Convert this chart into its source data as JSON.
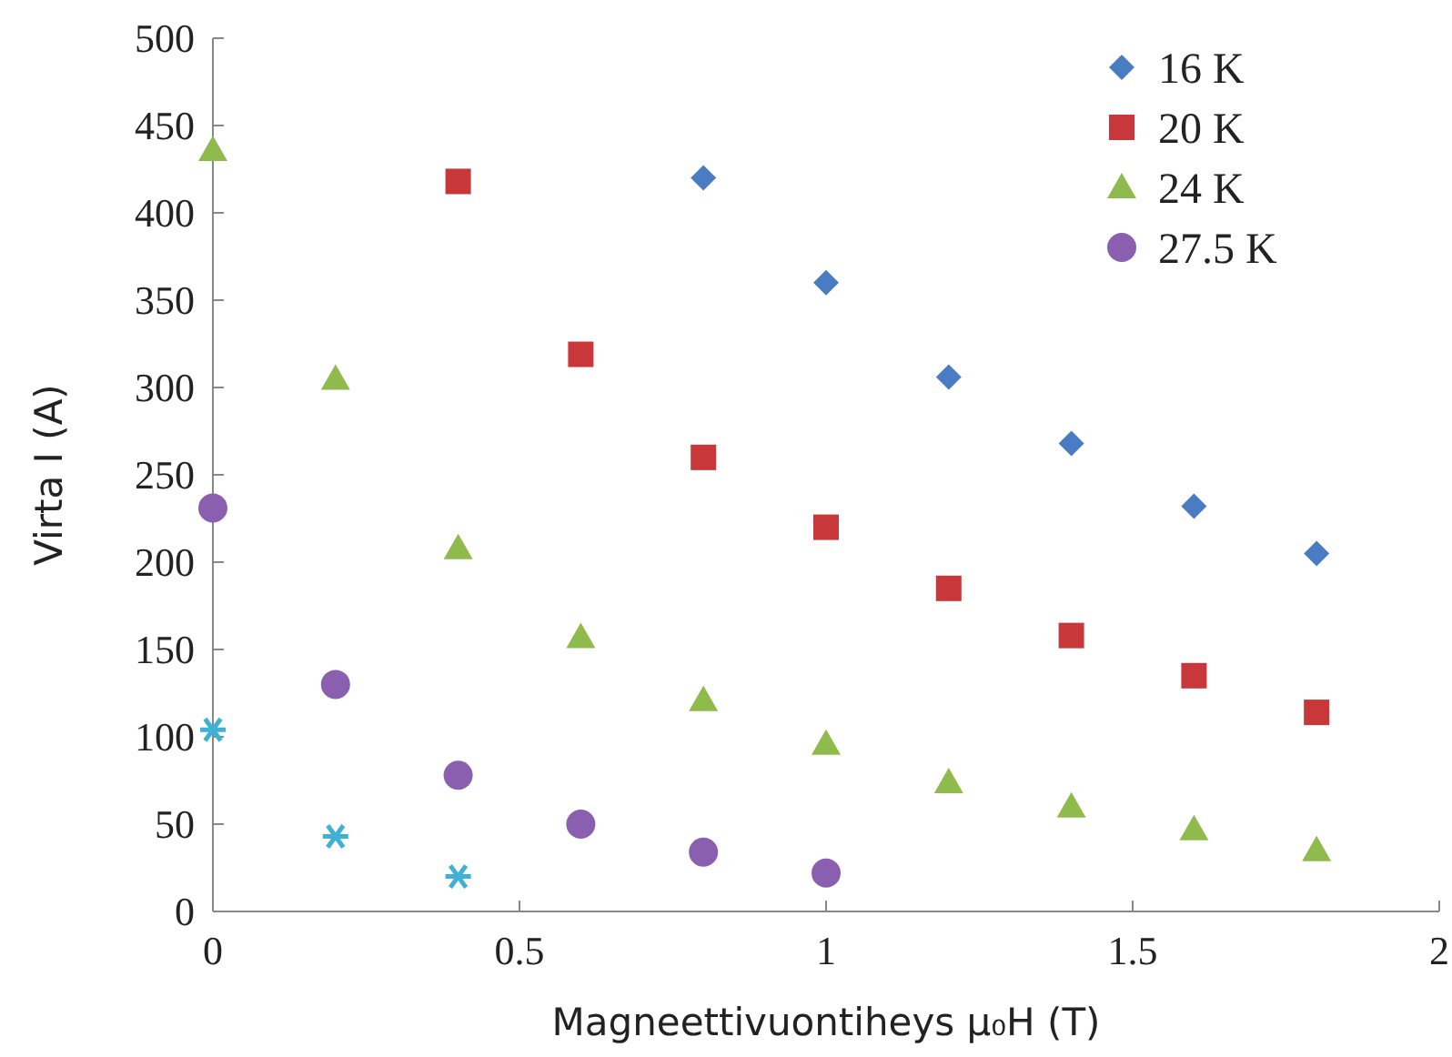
{
  "chart_data": {
    "type": "scatter",
    "xlabel": "Magneettivuontiheys μ₀H (T)",
    "ylabel": "Virta  I (A)",
    "xlim": [
      0,
      2
    ],
    "ylim": [
      0,
      500
    ],
    "xticks": [
      0,
      0.5,
      1,
      1.5,
      2
    ],
    "yticks": [
      0,
      50,
      100,
      150,
      200,
      250,
      300,
      350,
      400,
      450,
      500
    ],
    "legend": "top right",
    "grid": false,
    "series": [
      {
        "name": "16 K",
        "color": "#4a7cc4",
        "marker": "diamond",
        "x": [
          0.8,
          1.0,
          1.2,
          1.4,
          1.6,
          1.8
        ],
        "values": [
          420,
          360,
          306,
          268,
          232,
          205
        ]
      },
      {
        "name": "20 K",
        "color": "#c8383a",
        "marker": "square",
        "x": [
          0.4,
          0.6,
          0.8,
          1.0,
          1.2,
          1.4,
          1.6,
          1.8
        ],
        "values": [
          418,
          319,
          260,
          220,
          185,
          158,
          135,
          114
        ]
      },
      {
        "name": "24 K",
        "color": "#8fbb4c",
        "marker": "triangle",
        "x": [
          0,
          0.2,
          0.4,
          0.6,
          0.8,
          1.0,
          1.2,
          1.4,
          1.6,
          1.8
        ],
        "values": [
          436,
          305,
          208,
          157,
          121,
          96,
          74,
          60,
          47,
          35
        ]
      },
      {
        "name": "27.5 K",
        "color": "#8a5fb0",
        "marker": "circle",
        "x": [
          0,
          0.2,
          0.4,
          0.6,
          0.8,
          1.0
        ],
        "values": [
          231,
          130,
          78,
          50,
          34,
          22
        ]
      },
      {
        "color": "#3fb1d6",
        "marker": "cross",
        "x": [
          0,
          0.2,
          0.4
        ],
        "values": [
          104,
          43,
          20
        ]
      }
    ]
  }
}
